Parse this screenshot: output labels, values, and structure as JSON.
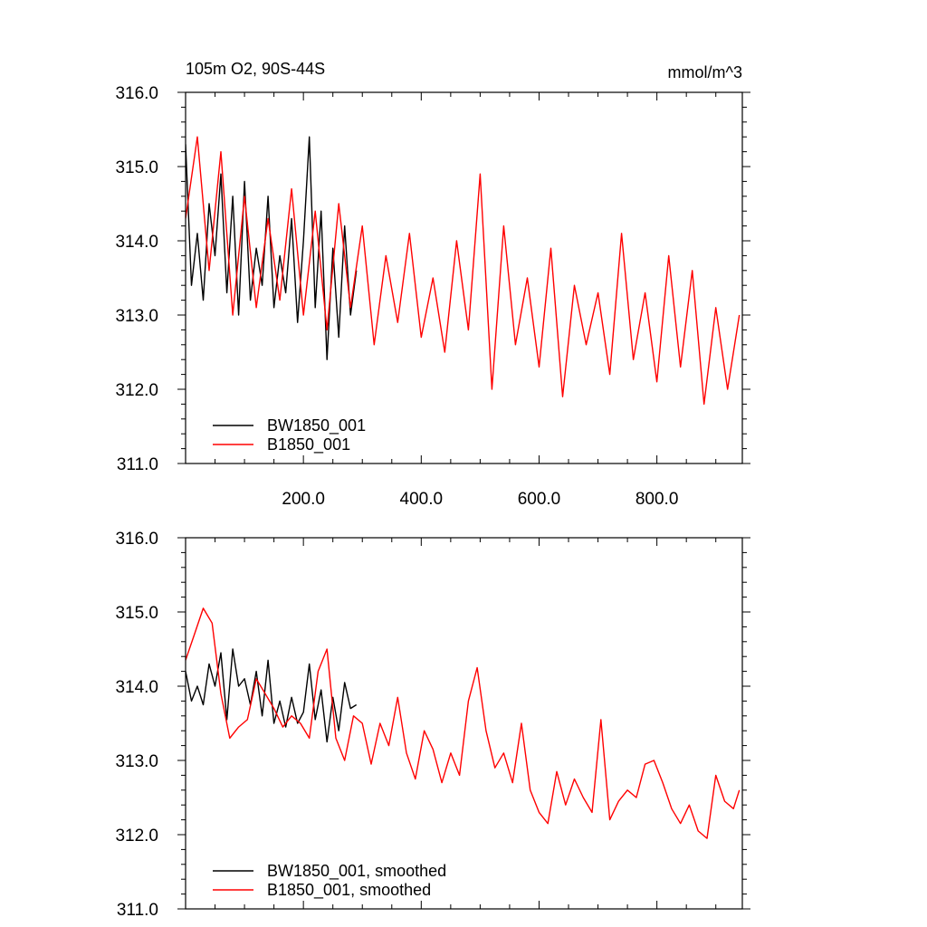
{
  "chart_data": [
    {
      "type": "line",
      "title": "105m O2, 90S-44S",
      "units_label": "mmol/m^3",
      "xlim": [
        0,
        945
      ],
      "ylim": [
        311.0,
        316.0
      ],
      "xticks": [
        200,
        400,
        600,
        800
      ],
      "xtick_labels": [
        "200.0",
        "400.0",
        "600.0",
        "800.0"
      ],
      "yticks": [
        311,
        312,
        313,
        314,
        315,
        316
      ],
      "ytick_labels": [
        "311.0",
        "312.0",
        "313.0",
        "314.0",
        "315.0",
        "316.0"
      ],
      "legend_position": "bottom-left",
      "series": [
        {
          "name": "BW1850_001",
          "color": "#000000",
          "x": [
            0,
            10,
            20,
            30,
            40,
            50,
            60,
            70,
            80,
            90,
            100,
            110,
            120,
            130,
            140,
            150,
            160,
            170,
            180,
            190,
            200,
            210,
            220,
            230,
            240,
            250,
            260,
            270,
            280,
            290
          ],
          "y": [
            315.3,
            313.4,
            314.1,
            313.2,
            314.5,
            313.8,
            314.9,
            313.3,
            314.6,
            313.0,
            314.8,
            313.2,
            313.9,
            313.4,
            314.6,
            313.1,
            313.8,
            313.3,
            314.3,
            312.9,
            314.0,
            315.4,
            313.1,
            314.4,
            312.4,
            313.9,
            312.7,
            314.2,
            313.0,
            313.6
          ]
        },
        {
          "name": "B1850_001",
          "color": "#ff0000",
          "x": [
            0,
            20,
            40,
            60,
            80,
            100,
            120,
            140,
            160,
            180,
            200,
            220,
            240,
            260,
            280,
            300,
            320,
            340,
            360,
            380,
            400,
            420,
            440,
            460,
            480,
            500,
            520,
            540,
            560,
            580,
            600,
            620,
            640,
            660,
            680,
            700,
            720,
            740,
            760,
            780,
            800,
            820,
            840,
            860,
            880,
            900,
            920,
            940
          ],
          "y": [
            314.3,
            315.4,
            313.6,
            315.2,
            313.0,
            314.6,
            313.1,
            314.3,
            313.2,
            314.7,
            313.0,
            314.4,
            312.8,
            314.5,
            313.1,
            314.2,
            312.6,
            313.8,
            312.9,
            314.1,
            312.7,
            313.5,
            312.5,
            314.0,
            312.8,
            314.9,
            312.0,
            314.2,
            312.6,
            313.5,
            312.3,
            313.9,
            311.9,
            313.4,
            312.6,
            313.3,
            312.2,
            314.1,
            312.4,
            313.3,
            312.1,
            313.8,
            312.3,
            313.6,
            311.8,
            313.1,
            312.0,
            313.0
          ]
        }
      ]
    },
    {
      "type": "line",
      "xlim": [
        0,
        945
      ],
      "ylim": [
        311.0,
        316.0
      ],
      "yticks": [
        311,
        312,
        313,
        314,
        315,
        316
      ],
      "ytick_labels": [
        "311.0",
        "312.0",
        "313.0",
        "314.0",
        "315.0",
        "316.0"
      ],
      "legend_position": "bottom-left",
      "series": [
        {
          "name": "BW1850_001, smoothed",
          "color": "#000000",
          "x": [
            0,
            10,
            20,
            30,
            40,
            50,
            60,
            70,
            80,
            90,
            100,
            110,
            120,
            130,
            140,
            150,
            160,
            170,
            180,
            190,
            200,
            210,
            220,
            230,
            240,
            250,
            260,
            270,
            280,
            290
          ],
          "y": [
            314.2,
            313.8,
            314.0,
            313.75,
            314.3,
            314.0,
            314.45,
            313.55,
            314.5,
            314.0,
            314.1,
            313.75,
            314.2,
            313.6,
            314.35,
            313.5,
            313.8,
            313.45,
            313.85,
            313.5,
            313.65,
            314.3,
            313.55,
            313.95,
            313.25,
            313.85,
            313.4,
            314.05,
            313.7,
            313.75
          ]
        },
        {
          "name": "B1850_001, smoothed",
          "color": "#ff0000",
          "x": [
            0,
            15,
            30,
            45,
            60,
            75,
            90,
            105,
            120,
            135,
            150,
            165,
            180,
            195,
            210,
            225,
            240,
            255,
            270,
            285,
            300,
            315,
            330,
            345,
            360,
            375,
            390,
            405,
            420,
            435,
            450,
            465,
            480,
            495,
            510,
            525,
            540,
            555,
            570,
            585,
            600,
            615,
            630,
            645,
            660,
            675,
            690,
            705,
            720,
            735,
            750,
            765,
            780,
            795,
            810,
            825,
            840,
            855,
            870,
            885,
            900,
            915,
            930,
            940
          ],
          "y": [
            314.35,
            314.7,
            315.05,
            314.85,
            313.9,
            313.3,
            313.45,
            313.55,
            314.1,
            313.9,
            313.7,
            313.45,
            313.6,
            313.5,
            313.3,
            314.2,
            314.5,
            313.3,
            313.0,
            313.6,
            313.5,
            312.95,
            313.5,
            313.2,
            313.85,
            313.1,
            312.75,
            313.4,
            313.15,
            312.7,
            313.1,
            312.8,
            313.8,
            314.25,
            313.4,
            312.9,
            313.1,
            312.7,
            313.5,
            312.6,
            312.3,
            312.15,
            312.85,
            312.4,
            312.75,
            312.5,
            312.3,
            313.55,
            312.2,
            312.45,
            312.6,
            312.5,
            312.95,
            313.0,
            312.7,
            312.35,
            312.15,
            312.4,
            312.05,
            311.95,
            312.8,
            312.45,
            312.35,
            312.6
          ]
        }
      ]
    }
  ]
}
